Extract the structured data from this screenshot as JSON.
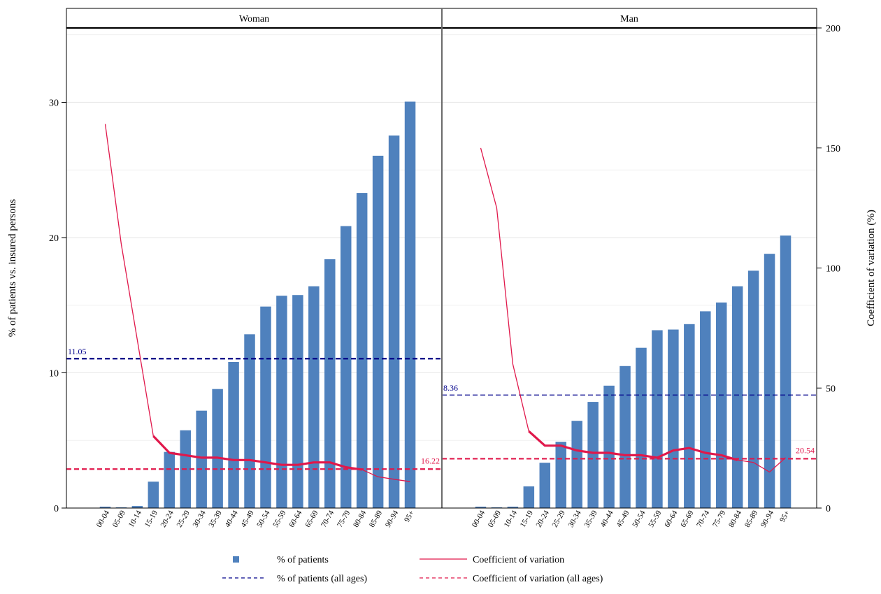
{
  "chart_data": {
    "type": "bar",
    "categories": [
      "00-04",
      "05-09",
      "10-14",
      "15-19",
      "20-24",
      "25-29",
      "30-34",
      "35-39",
      "40-44",
      "45-49",
      "50-54",
      "55-59",
      "60-64",
      "65-69",
      "70-74",
      "75-79",
      "80-84",
      "85-89",
      "90-94",
      "95+"
    ],
    "ylabel": "% of patients vs. insured persons",
    "y2label": "Coefficient of variation (%)",
    "ylim": [
      0,
      35.5
    ],
    "y2lim": [
      0,
      200
    ],
    "yticks": [
      0,
      10,
      20,
      30
    ],
    "y2ticks": [
      0,
      50,
      100,
      150,
      200
    ],
    "colors": {
      "bar": "#4f81bd",
      "cv_line": "#e0184b",
      "patients_all": "#00008b",
      "cv_all": "#e0184b",
      "strip_line": "#000000",
      "grid": "#e6e6e6"
    },
    "panels": [
      {
        "name": "Woman",
        "bars": [
          0.1,
          0.05,
          0.15,
          1.95,
          4.15,
          5.75,
          7.2,
          8.8,
          10.8,
          12.85,
          14.9,
          15.7,
          15.75,
          16.4,
          18.4,
          20.85,
          23.3,
          26.05,
          27.55,
          30.05
        ],
        "cv": [
          160,
          110,
          70,
          30,
          23,
          22,
          21,
          21,
          20,
          20,
          19,
          18,
          18,
          19,
          19,
          17,
          16,
          13,
          12,
          11
        ],
        "cv_thick_from": 3,
        "cv_thick_to": 16,
        "patients_all": 11.05,
        "patients_all_label": "11.05",
        "cv_all": 16.22,
        "cv_all_label": "16.22"
      },
      {
        "name": "Man",
        "bars": [
          0.1,
          0.05,
          0.1,
          1.6,
          3.35,
          4.9,
          6.45,
          7.85,
          9.05,
          10.5,
          11.85,
          13.15,
          13.2,
          13.6,
          14.55,
          15.2,
          16.4,
          17.55,
          18.8,
          20.15
        ],
        "cv": [
          150,
          125,
          60,
          32,
          26,
          26,
          24,
          23,
          23,
          22,
          22,
          21,
          24,
          25,
          23,
          22,
          20,
          19,
          15,
          21
        ],
        "cv_thick_from": 3,
        "cv_thick_to": 16,
        "patients_all": 8.36,
        "patients_all_label": "8.36",
        "cv_all": 20.54,
        "cv_all_label": "20.54"
      }
    ],
    "legend": {
      "placement": "bottom",
      "items": [
        {
          "label": "% of patients",
          "kind": "bar"
        },
        {
          "label": "Coefficient of variation",
          "kind": "cv_line"
        },
        {
          "label": "% of patients (all ages)",
          "kind": "patients_all"
        },
        {
          "label": "Coefficient of variation (all ages)",
          "kind": "cv_all"
        }
      ]
    }
  }
}
